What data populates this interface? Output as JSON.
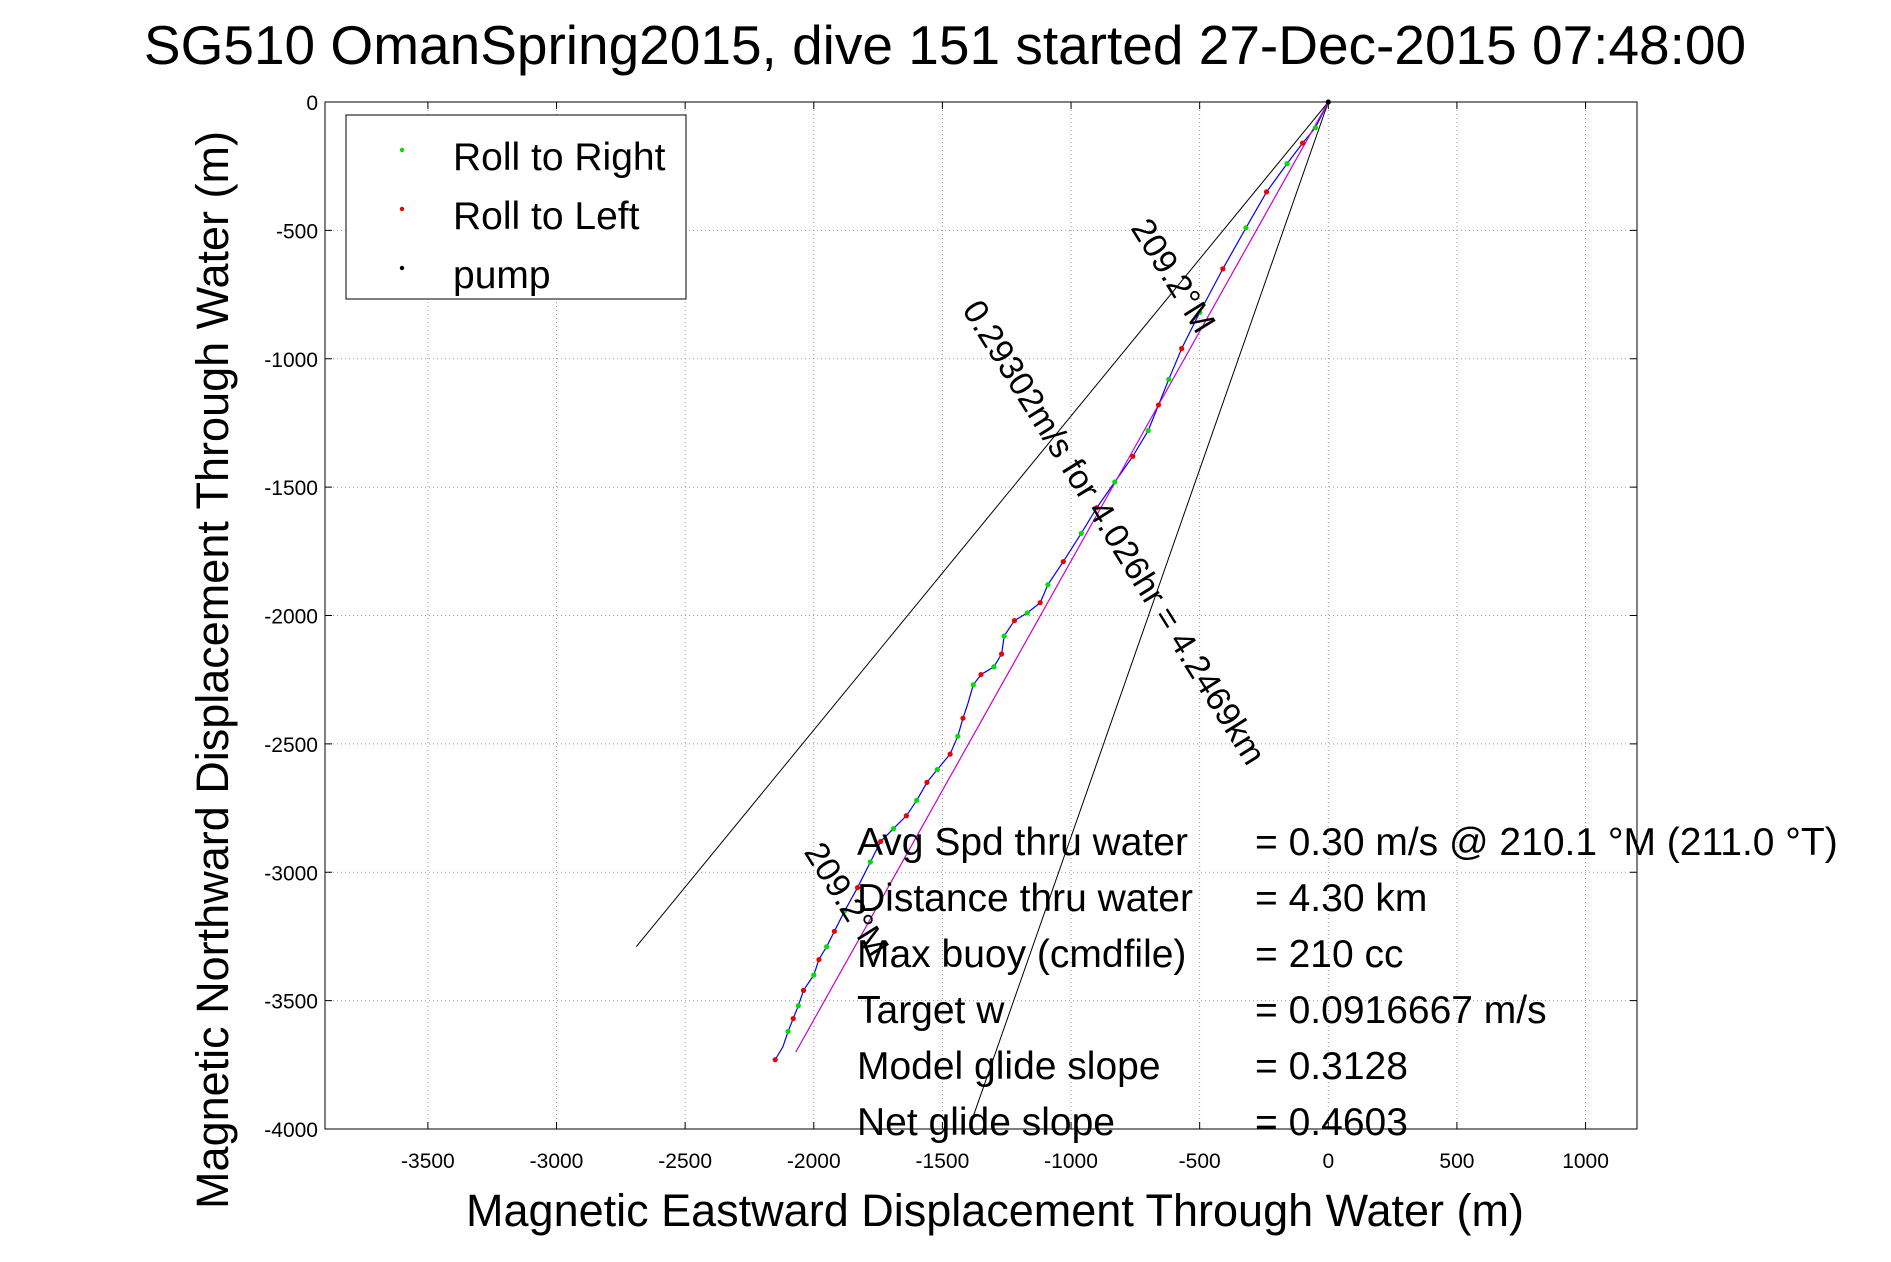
{
  "chart_data": {
    "type": "line",
    "title": "SG510 OmanSpring2015, dive 151 started 27-Dec-2015 07:48:00",
    "xlabel": "Magnetic Eastward Displacement Through Water (m)",
    "ylabel": "Magnetic Northward Displacement Through Water (m)",
    "xlim": [
      -3900,
      1200
    ],
    "ylim": [
      -4000,
      0
    ],
    "xticks": [
      -3500,
      -3000,
      -2500,
      -2000,
      -1500,
      -1000,
      -500,
      0,
      500,
      1000
    ],
    "yticks": [
      0,
      -500,
      -1000,
      -1500,
      -2000,
      -2500,
      -3000,
      -3500,
      -4000
    ],
    "xtick_labels": [
      "-3500",
      "-3000",
      "-2500",
      "-2000",
      "-1500",
      "-1000",
      "-500",
      "0",
      "500",
      "1000"
    ],
    "ytick_labels": [
      "0",
      "-500",
      "-1000",
      "-1500",
      "-2000",
      "-2500",
      "-3000",
      "-3500",
      "-4000"
    ],
    "grid": true,
    "legend_position": "top-left",
    "legend": [
      {
        "label": "Roll to Right",
        "color": "#00dd00"
      },
      {
        "label": "Roll to Left",
        "color": "#ee0000"
      },
      {
        "label": "pump",
        "color": "#000000"
      }
    ],
    "series": [
      {
        "name": "track",
        "color": "#0000ff",
        "x": [
          0,
          -50,
          -100,
          -160,
          -240,
          -320,
          -410,
          -500,
          -570,
          -620,
          -660,
          -700,
          -760,
          -830,
          -900,
          -960,
          -1030,
          -1090,
          -1120,
          -1170,
          -1220,
          -1260,
          -1270,
          -1300,
          -1350,
          -1380,
          -1400,
          -1420,
          -1440,
          -1470,
          -1520,
          -1560,
          -1600,
          -1640,
          -1690,
          -1740,
          -1780,
          -1830,
          -1880,
          -1920,
          -1950,
          -1980,
          -2000,
          -2040,
          -2060,
          -2080,
          -2100,
          -2120,
          -2150
        ],
        "y": [
          0,
          -100,
          -160,
          -240,
          -350,
          -490,
          -650,
          -820,
          -960,
          -1080,
          -1180,
          -1280,
          -1380,
          -1480,
          -1580,
          -1680,
          -1790,
          -1880,
          -1950,
          -1990,
          -2020,
          -2080,
          -2150,
          -2200,
          -2230,
          -2270,
          -2340,
          -2400,
          -2470,
          -2540,
          -2600,
          -2650,
          -2720,
          -2780,
          -2830,
          -2880,
          -2960,
          -3060,
          -3150,
          -3230,
          -3290,
          -3340,
          -3400,
          -3460,
          -3520,
          -3570,
          -3620,
          -3680,
          -3730
        ]
      },
      {
        "name": "glide",
        "color": "#cc00cc",
        "x": [
          0,
          -2070
        ],
        "y": [
          0,
          -3700
        ]
      }
    ],
    "points": {
      "roll_right": {
        "x": [
          -50,
          -160,
          -320,
          -500,
          -620,
          -700,
          -830,
          -960,
          -1090,
          -1170,
          -1260,
          -1300,
          -1380,
          -1440,
          -1520,
          -1600,
          -1690,
          -1780,
          -1880,
          -1950,
          -2000,
          -2060,
          -2100
        ],
        "y": [
          -100,
          -240,
          -490,
          -820,
          -1080,
          -1280,
          -1480,
          -1680,
          -1880,
          -1990,
          -2080,
          -2200,
          -2270,
          -2470,
          -2600,
          -2720,
          -2830,
          -2960,
          -3150,
          -3290,
          -3400,
          -3520,
          -3620
        ]
      },
      "roll_left": {
        "x": [
          -100,
          -240,
          -410,
          -570,
          -660,
          -760,
          -900,
          -1030,
          -1120,
          -1220,
          -1270,
          -1350,
          -1420,
          -1470,
          -1560,
          -1640,
          -1740,
          -1830,
          -1920,
          -1980,
          -2040,
          -2080,
          -2150
        ],
        "y": [
          -160,
          -350,
          -650,
          -960,
          -1180,
          -1380,
          -1580,
          -1790,
          -1950,
          -2020,
          -2150,
          -2230,
          -2400,
          -2540,
          -2650,
          -2780,
          -2880,
          -3060,
          -3230,
          -3340,
          -3460,
          -3570,
          -3730
        ]
      },
      "pump": {
        "x": [
          0
        ],
        "y": [
          0
        ]
      }
    },
    "reference_lines": [
      {
        "x": [
          0,
          -2690
        ],
        "y": [
          0,
          -3290
        ]
      },
      {
        "x": [
          0,
          -1380
        ],
        "y": [
          0,
          -3950
        ]
      }
    ],
    "annotations": [
      {
        "text": "0.29302m/s for 4.026hr = 4.2469km",
        "x": -870,
        "y": -1700,
        "angle": 58
      },
      {
        "text": "209.2°M",
        "x": -640,
        "y": -700,
        "angle": 58
      },
      {
        "text": "209.2°M",
        "x": -1910,
        "y": -3130,
        "angle": 58
      }
    ],
    "info": [
      {
        "label": "Avg Spd thru water",
        "value": "=  0.30 m/s @ 210.1 °M (211.0 °T)"
      },
      {
        "label": "Distance thru water",
        "value": "=  4.30 km"
      },
      {
        "label": "Max buoy (cmdfile)",
        "value": "= 210 cc"
      },
      {
        "label": "Target w",
        "value": "= 0.0916667 m/s"
      },
      {
        "label": "Model glide slope",
        "value": "= 0.3128"
      },
      {
        "label": "Net glide slope",
        "value": "= 0.4603"
      }
    ]
  }
}
